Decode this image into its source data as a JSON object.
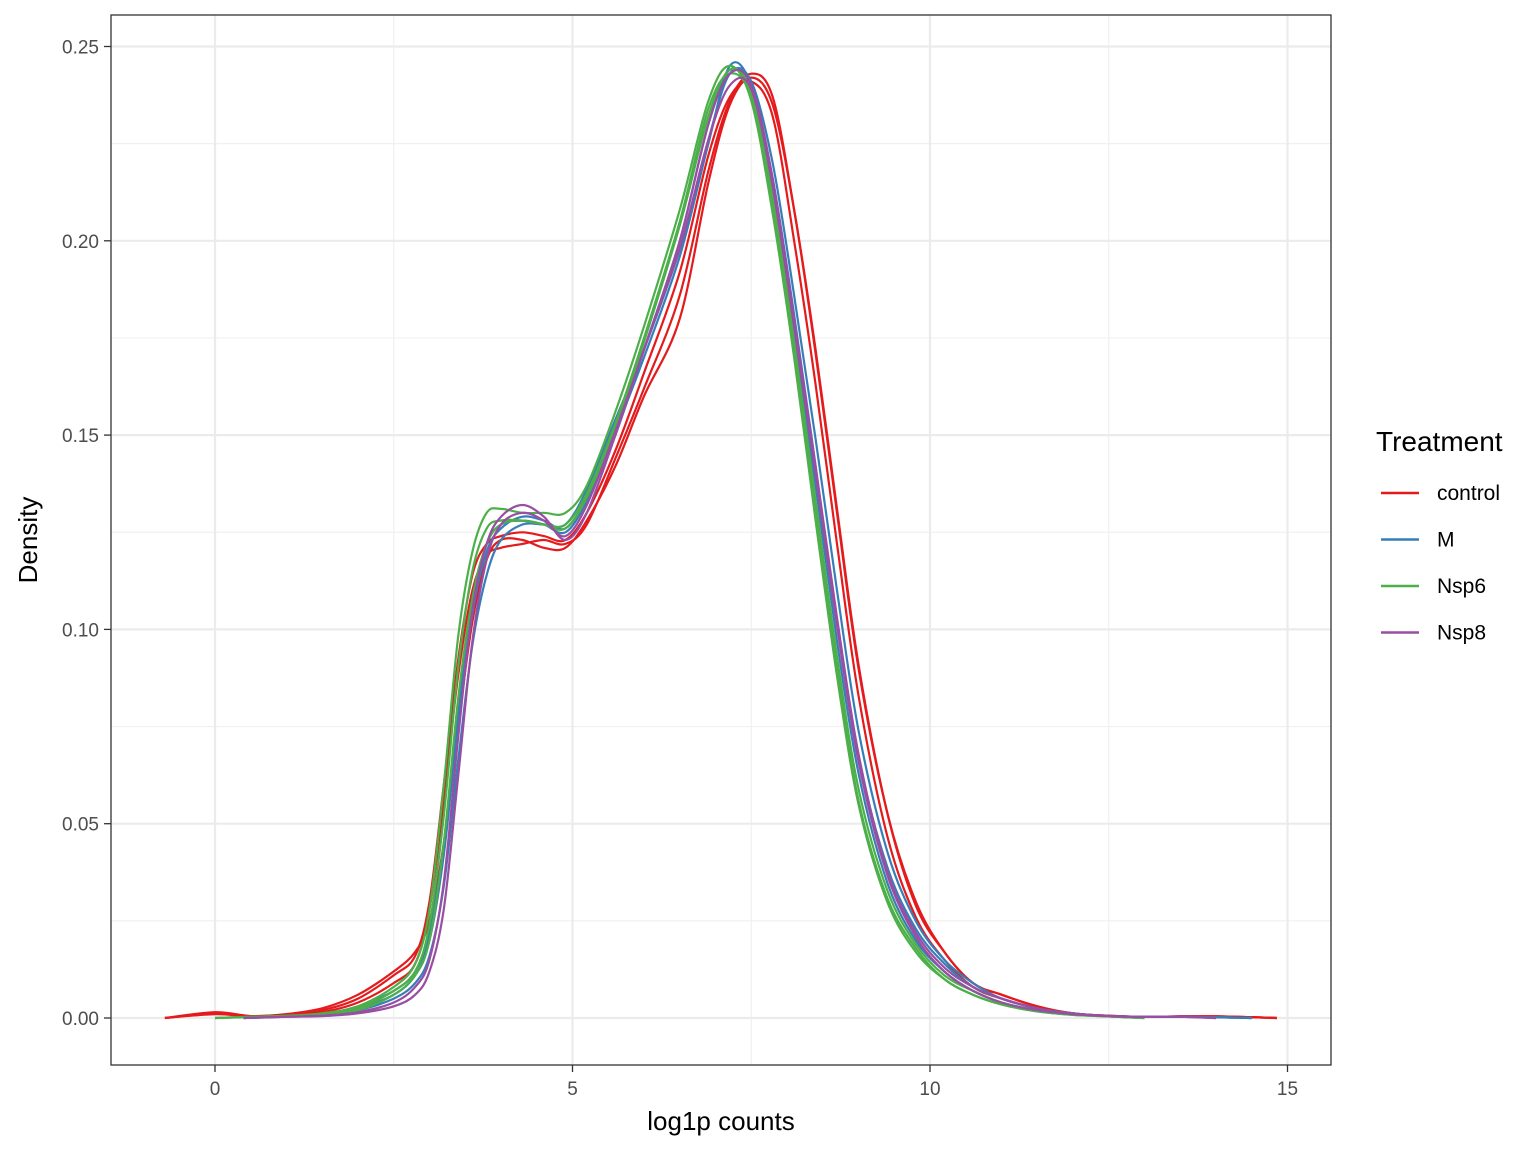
{
  "chart_data": {
    "type": "line",
    "title": "",
    "xlabel": "log1p counts",
    "ylabel": "Density",
    "xlim": [
      -1.3,
      15.8
    ],
    "ylim": [
      -0.012,
      0.258
    ],
    "x_ticks": [
      0,
      5,
      10,
      15
    ],
    "x_tick_labels": [
      "0",
      "5",
      "10",
      "15"
    ],
    "y_ticks": [
      0.0,
      0.05,
      0.1,
      0.15,
      0.2,
      0.25
    ],
    "y_tick_labels": [
      "0.00",
      "0.05",
      "0.10",
      "0.15",
      "0.20",
      "0.25"
    ],
    "grid": true,
    "legend": {
      "title": "Treatment",
      "placement": "right",
      "entries": [
        {
          "label": "control",
          "color": "#E41A1C"
        },
        {
          "label": "M",
          "color": "#377EB8"
        },
        {
          "label": "Nsp6",
          "color": "#4DAF4A"
        },
        {
          "label": "Nsp8",
          "color": "#984EA3"
        }
      ]
    },
    "series": [
      {
        "group": "control",
        "color": "#E41A1C",
        "x": [
          -0.7,
          0.0,
          0.5,
          1.0,
          1.5,
          2.0,
          2.5,
          2.8,
          3.0,
          3.2,
          3.4,
          3.6,
          3.8,
          4.0,
          4.3,
          4.6,
          4.9,
          5.2,
          5.6,
          6.0,
          6.5,
          6.9,
          7.2,
          7.5,
          7.8,
          8.1,
          8.4,
          8.7,
          9.0,
          9.4,
          9.8,
          10.2,
          10.6,
          11.0,
          11.5,
          12.0,
          12.5,
          13.0,
          13.5,
          14.0,
          14.5,
          14.85
        ],
        "y": [
          0.0,
          0.0015,
          0.0005,
          0.001,
          0.0025,
          0.006,
          0.012,
          0.017,
          0.025,
          0.045,
          0.075,
          0.102,
          0.118,
          0.123,
          0.123,
          0.121,
          0.121,
          0.128,
          0.142,
          0.16,
          0.18,
          0.215,
          0.235,
          0.242,
          0.235,
          0.208,
          0.171,
          0.13,
          0.09,
          0.053,
          0.03,
          0.017,
          0.009,
          0.006,
          0.003,
          0.0012,
          0.0006,
          0.0003,
          0.0004,
          0.0004,
          0.0002,
          0.0
        ]
      },
      {
        "group": "control",
        "color": "#E41A1C",
        "x": [
          -0.7,
          0.0,
          0.5,
          1.0,
          1.5,
          2.0,
          2.5,
          2.8,
          3.0,
          3.2,
          3.4,
          3.6,
          3.8,
          4.0,
          4.3,
          4.6,
          4.9,
          5.2,
          5.6,
          6.0,
          6.5,
          6.9,
          7.2,
          7.5,
          7.8,
          8.1,
          8.4,
          8.7,
          9.0,
          9.4,
          9.8,
          10.2,
          10.6,
          11.0,
          11.5,
          12.0,
          12.5,
          13.0,
          13.5,
          14.0,
          14.5,
          14.85
        ],
        "y": [
          0.0,
          0.0012,
          0.0005,
          0.0008,
          0.002,
          0.005,
          0.011,
          0.016,
          0.03,
          0.06,
          0.092,
          0.114,
          0.122,
          0.124,
          0.125,
          0.124,
          0.123,
          0.13,
          0.146,
          0.166,
          0.192,
          0.222,
          0.237,
          0.241,
          0.232,
          0.2,
          0.163,
          0.122,
          0.083,
          0.047,
          0.026,
          0.015,
          0.008,
          0.005,
          0.0025,
          0.001,
          0.0005,
          0.0003,
          0.0004,
          0.0004,
          0.0002,
          0.0
        ]
      },
      {
        "group": "control",
        "color": "#E41A1C",
        "x": [
          -0.7,
          0.0,
          0.5,
          1.0,
          1.5,
          2.0,
          2.5,
          2.8,
          3.0,
          3.2,
          3.4,
          3.6,
          3.8,
          4.0,
          4.3,
          4.6,
          4.9,
          5.2,
          5.6,
          6.0,
          6.5,
          6.9,
          7.2,
          7.5,
          7.8,
          8.1,
          8.4,
          8.7,
          9.0,
          9.4,
          9.8,
          10.2,
          10.6,
          11.0,
          11.5,
          12.0,
          12.5,
          13.0,
          13.5,
          14.0,
          14.5,
          14.85
        ],
        "y": [
          0.0,
          0.001,
          0.0004,
          0.0007,
          0.0015,
          0.004,
          0.009,
          0.014,
          0.028,
          0.056,
          0.088,
          0.11,
          0.119,
          0.121,
          0.122,
          0.123,
          0.122,
          0.127,
          0.144,
          0.162,
          0.186,
          0.218,
          0.236,
          0.243,
          0.237,
          0.208,
          0.172,
          0.131,
          0.091,
          0.053,
          0.029,
          0.017,
          0.009,
          0.006,
          0.003,
          0.0012,
          0.0006,
          0.0003,
          0.0004,
          0.0004,
          0.0002,
          0.0
        ]
      },
      {
        "group": "M",
        "color": "#377EB8",
        "x": [
          0.4,
          1.0,
          1.5,
          2.0,
          2.5,
          2.8,
          3.0,
          3.2,
          3.4,
          3.6,
          3.8,
          4.0,
          4.3,
          4.6,
          4.9,
          5.2,
          5.6,
          6.0,
          6.5,
          6.9,
          7.2,
          7.5,
          7.8,
          8.1,
          8.4,
          8.7,
          9.0,
          9.4,
          9.8,
          10.2,
          10.6,
          11.0,
          11.5,
          12.0,
          12.5,
          13.0,
          13.5,
          14.0,
          14.5
        ],
        "y": [
          0.0,
          0.0005,
          0.001,
          0.003,
          0.007,
          0.012,
          0.022,
          0.045,
          0.08,
          0.108,
          0.122,
          0.127,
          0.128,
          0.127,
          0.125,
          0.133,
          0.15,
          0.172,
          0.2,
          0.23,
          0.244,
          0.238,
          0.212,
          0.176,
          0.137,
          0.097,
          0.063,
          0.035,
          0.02,
          0.012,
          0.007,
          0.004,
          0.002,
          0.001,
          0.0005,
          0.0003,
          0.0003,
          0.0002,
          0.0
        ]
      },
      {
        "group": "M",
        "color": "#377EB8",
        "x": [
          0.4,
          1.0,
          1.5,
          2.0,
          2.5,
          2.8,
          3.0,
          3.2,
          3.4,
          3.6,
          3.8,
          4.0,
          4.3,
          4.6,
          4.9,
          5.2,
          5.6,
          6.0,
          6.5,
          6.9,
          7.2,
          7.5,
          7.8,
          8.1,
          8.4,
          8.7,
          9.0,
          9.4,
          9.8,
          10.2,
          10.6,
          11.0,
          11.5,
          12.0,
          12.5,
          13.0,
          13.5,
          14.0,
          14.5
        ],
        "y": [
          0.0,
          0.0005,
          0.001,
          0.0025,
          0.006,
          0.011,
          0.02,
          0.042,
          0.076,
          0.104,
          0.12,
          0.126,
          0.129,
          0.128,
          0.126,
          0.134,
          0.151,
          0.17,
          0.196,
          0.225,
          0.245,
          0.24,
          0.216,
          0.181,
          0.142,
          0.102,
          0.067,
          0.039,
          0.023,
          0.014,
          0.008,
          0.005,
          0.0025,
          0.0012,
          0.0005,
          0.0003,
          0.0003,
          0.0002,
          0.0
        ]
      },
      {
        "group": "M",
        "color": "#377EB8",
        "x": [
          0.4,
          1.0,
          1.5,
          2.0,
          2.5,
          2.8,
          3.0,
          3.2,
          3.4,
          3.6,
          3.8,
          4.0,
          4.3,
          4.6,
          4.9,
          5.2,
          5.6,
          6.0,
          6.5,
          6.9,
          7.2,
          7.5,
          7.8,
          8.1,
          8.4,
          8.7,
          9.0,
          9.4,
          9.8,
          10.2,
          10.6,
          11.0,
          11.5,
          12.0,
          12.5,
          13.0,
          13.5,
          14.0,
          14.5
        ],
        "y": [
          0.0,
          0.0004,
          0.0008,
          0.002,
          0.005,
          0.009,
          0.016,
          0.034,
          0.066,
          0.096,
          0.114,
          0.123,
          0.127,
          0.127,
          0.127,
          0.136,
          0.154,
          0.172,
          0.198,
          0.226,
          0.243,
          0.241,
          0.22,
          0.186,
          0.149,
          0.11,
          0.074,
          0.043,
          0.025,
          0.015,
          0.009,
          0.005,
          0.0025,
          0.0012,
          0.0005,
          0.0003,
          0.0003,
          0.0002,
          0.0
        ]
      },
      {
        "group": "Nsp6",
        "color": "#4DAF4A",
        "x": [
          0.0,
          0.5,
          1.0,
          1.5,
          2.0,
          2.5,
          2.8,
          3.0,
          3.2,
          3.4,
          3.6,
          3.8,
          4.0,
          4.3,
          4.6,
          4.9,
          5.2,
          5.6,
          6.0,
          6.5,
          6.9,
          7.2,
          7.5,
          7.8,
          8.1,
          8.4,
          8.7,
          9.0,
          9.4,
          9.8,
          10.2,
          10.6,
          11.0,
          11.5,
          12.0,
          12.5,
          13.0
        ],
        "y": [
          0.0,
          0.0003,
          0.0006,
          0.0012,
          0.003,
          0.008,
          0.014,
          0.028,
          0.06,
          0.098,
          0.12,
          0.13,
          0.131,
          0.13,
          0.13,
          0.13,
          0.137,
          0.156,
          0.178,
          0.208,
          0.236,
          0.245,
          0.236,
          0.207,
          0.17,
          0.128,
          0.088,
          0.055,
          0.03,
          0.017,
          0.01,
          0.006,
          0.0035,
          0.0017,
          0.0008,
          0.0004,
          0.0
        ]
      },
      {
        "group": "Nsp6",
        "color": "#4DAF4A",
        "x": [
          0.0,
          0.5,
          1.0,
          1.5,
          2.0,
          2.5,
          2.8,
          3.0,
          3.2,
          3.4,
          3.6,
          3.8,
          4.0,
          4.3,
          4.6,
          4.9,
          5.2,
          5.6,
          6.0,
          6.5,
          6.9,
          7.2,
          7.5,
          7.8,
          8.1,
          8.4,
          8.7,
          9.0,
          9.4,
          9.8,
          10.2,
          10.6,
          11.0,
          11.5,
          12.0,
          12.5,
          13.0
        ],
        "y": [
          0.0,
          0.0003,
          0.0005,
          0.001,
          0.0025,
          0.007,
          0.012,
          0.024,
          0.052,
          0.09,
          0.115,
          0.126,
          0.128,
          0.128,
          0.127,
          0.126,
          0.134,
          0.152,
          0.174,
          0.204,
          0.232,
          0.244,
          0.238,
          0.21,
          0.172,
          0.13,
          0.09,
          0.056,
          0.031,
          0.018,
          0.01,
          0.006,
          0.0035,
          0.0017,
          0.0008,
          0.0004,
          0.0
        ]
      },
      {
        "group": "Nsp6",
        "color": "#4DAF4A",
        "x": [
          0.0,
          0.5,
          1.0,
          1.5,
          2.0,
          2.5,
          2.8,
          3.0,
          3.2,
          3.4,
          3.6,
          3.8,
          4.0,
          4.3,
          4.6,
          4.9,
          5.2,
          5.6,
          6.0,
          6.5,
          6.9,
          7.2,
          7.5,
          7.8,
          8.1,
          8.4,
          8.7,
          9.0,
          9.4,
          9.8,
          10.2,
          10.6,
          11.0,
          11.5,
          12.0,
          12.5,
          13.0
        ],
        "y": [
          0.0,
          0.0003,
          0.0005,
          0.001,
          0.002,
          0.006,
          0.011,
          0.02,
          0.045,
          0.082,
          0.108,
          0.122,
          0.127,
          0.128,
          0.127,
          0.127,
          0.135,
          0.153,
          0.175,
          0.205,
          0.234,
          0.243,
          0.237,
          0.211,
          0.174,
          0.133,
          0.093,
          0.059,
          0.033,
          0.019,
          0.011,
          0.007,
          0.004,
          0.002,
          0.001,
          0.0004,
          0.0
        ]
      },
      {
        "group": "Nsp8",
        "color": "#984EA3",
        "x": [
          0.4,
          1.0,
          1.5,
          2.0,
          2.5,
          2.8,
          3.0,
          3.2,
          3.4,
          3.6,
          3.8,
          4.0,
          4.3,
          4.6,
          4.9,
          5.2,
          5.6,
          6.0,
          6.5,
          6.9,
          7.2,
          7.5,
          7.8,
          8.1,
          8.4,
          8.7,
          9.0,
          9.4,
          9.8,
          10.2,
          10.6,
          11.0,
          11.5,
          12.0,
          12.5,
          13.0,
          13.5,
          14.0
        ],
        "y": [
          0.0,
          0.0003,
          0.0006,
          0.0015,
          0.004,
          0.008,
          0.015,
          0.035,
          0.072,
          0.105,
          0.122,
          0.129,
          0.132,
          0.129,
          0.123,
          0.13,
          0.15,
          0.172,
          0.198,
          0.226,
          0.24,
          0.239,
          0.214,
          0.178,
          0.14,
          0.101,
          0.066,
          0.037,
          0.021,
          0.012,
          0.007,
          0.004,
          0.002,
          0.001,
          0.0005,
          0.0003,
          0.0003,
          0.0
        ]
      },
      {
        "group": "Nsp8",
        "color": "#984EA3",
        "x": [
          0.4,
          1.0,
          1.5,
          2.0,
          2.5,
          2.8,
          3.0,
          3.2,
          3.4,
          3.6,
          3.8,
          4.0,
          4.3,
          4.6,
          4.9,
          5.2,
          5.6,
          6.0,
          6.5,
          6.9,
          7.2,
          7.5,
          7.8,
          8.1,
          8.4,
          8.7,
          9.0,
          9.4,
          9.8,
          10.2,
          10.6,
          11.0,
          11.5,
          12.0,
          12.5,
          13.0,
          13.5,
          14.0
        ],
        "y": [
          0.0,
          0.0003,
          0.0005,
          0.0012,
          0.003,
          0.006,
          0.012,
          0.028,
          0.062,
          0.097,
          0.118,
          0.127,
          0.13,
          0.128,
          0.124,
          0.132,
          0.151,
          0.172,
          0.2,
          0.23,
          0.243,
          0.24,
          0.216,
          0.18,
          0.142,
          0.103,
          0.068,
          0.038,
          0.022,
          0.013,
          0.008,
          0.005,
          0.0025,
          0.0012,
          0.0005,
          0.0003,
          0.0003,
          0.0
        ]
      }
    ]
  }
}
